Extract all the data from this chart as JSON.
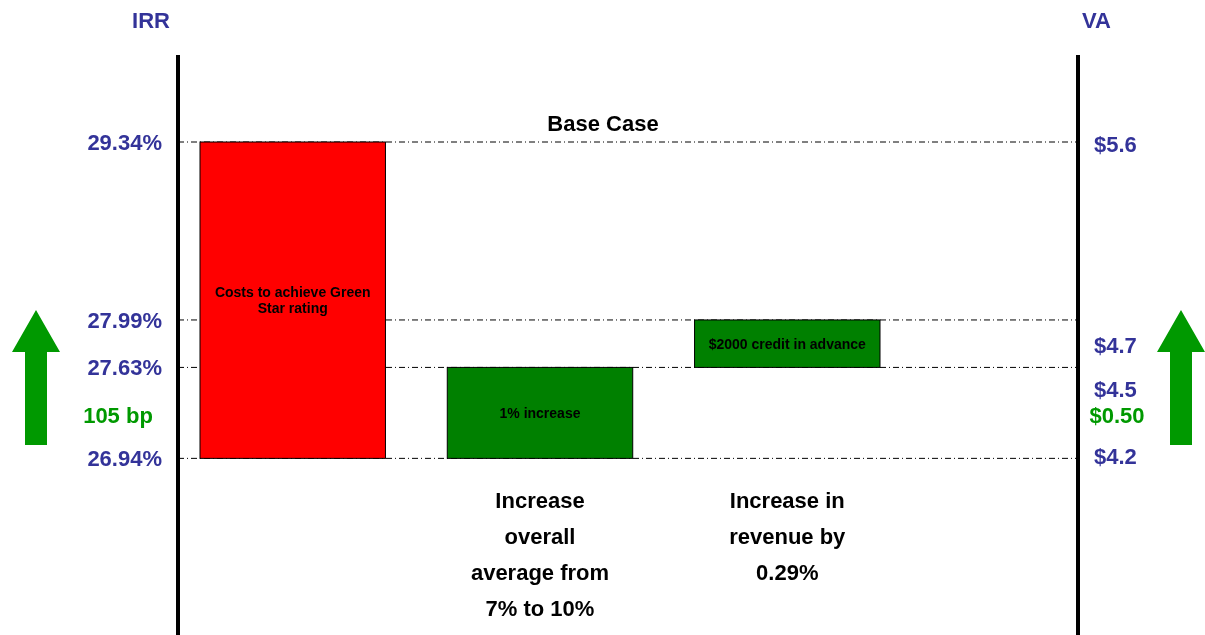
{
  "chart_data": {
    "type": "bar",
    "ylabel": "IRR",
    "y2label": "VA",
    "categories": [
      null,
      "Increase overall average from 7% to 10%",
      "Increase in revenue by 0.29%"
    ],
    "values": [
      2.4,
      0.69,
      0.36
    ],
    "base": [
      26.94,
      26.94,
      27.63
    ],
    "colors": [
      "#ff0000",
      "#008000",
      "#008000"
    ],
    "ylim": [
      25.6,
      30.0
    ],
    "yticks": [
      {
        "value": 29.34,
        "label": "29.34%"
      },
      {
        "value": 27.99,
        "label": "27.99%"
      },
      {
        "value": 27.63,
        "label": "27.63%"
      },
      {
        "value": 26.94,
        "label": "26.94%"
      }
    ],
    "y2lim": [
      3.4,
      6.0
    ],
    "y2ticks": [
      {
        "value": 5.6,
        "label": "$5.6"
      },
      {
        "value": 4.7,
        "label": "$4.7"
      },
      {
        "value": 4.5,
        "label": "$4.5"
      },
      {
        "value": 4.2,
        "label": "$4.2"
      }
    ],
    "grid": "y",
    "annotations": [
      "Base Case",
      "105 bp",
      "$0.50",
      "Costs to achieve Green Star rating",
      "1% increase",
      "$2000 credit in advance"
    ]
  }
}
